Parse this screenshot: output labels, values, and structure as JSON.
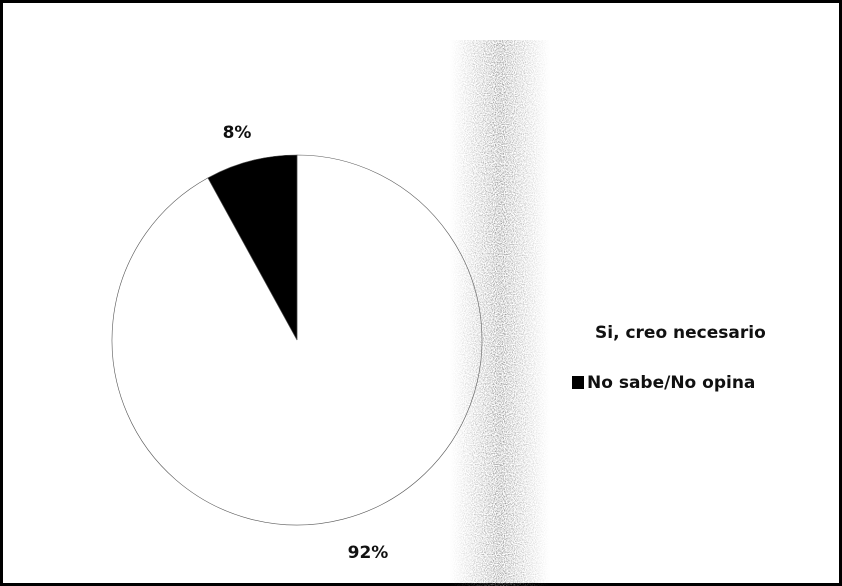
{
  "chart_data": {
    "type": "pie",
    "categories": [
      "Si, creo necesario",
      "No sabe/No opina"
    ],
    "values": [
      92,
      8
    ],
    "value_labels": [
      "92%",
      "8%"
    ],
    "colors": [
      "#ffffff",
      "#000000"
    ]
  }
}
